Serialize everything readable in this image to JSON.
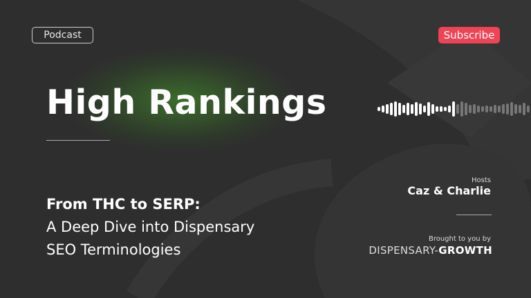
{
  "badge": {
    "label": "Podcast"
  },
  "subscribe": {
    "label": "Subscribe",
    "color": "#f04356"
  },
  "title": "High Rankings",
  "episode": {
    "line1": "From THC to SERP:",
    "line2": "A Deep Dive into Dispensary",
    "line3": "SEO Terminologies"
  },
  "hosts": {
    "label": "Hosts",
    "names": "Caz & Charlie"
  },
  "sponsor": {
    "label": "Brought to you by",
    "logo_light": "DISPENSARY-",
    "logo_bold": "GROWTH"
  },
  "waveform": {
    "played_fraction": 0.5,
    "icon": "audio-waveform-icon"
  }
}
